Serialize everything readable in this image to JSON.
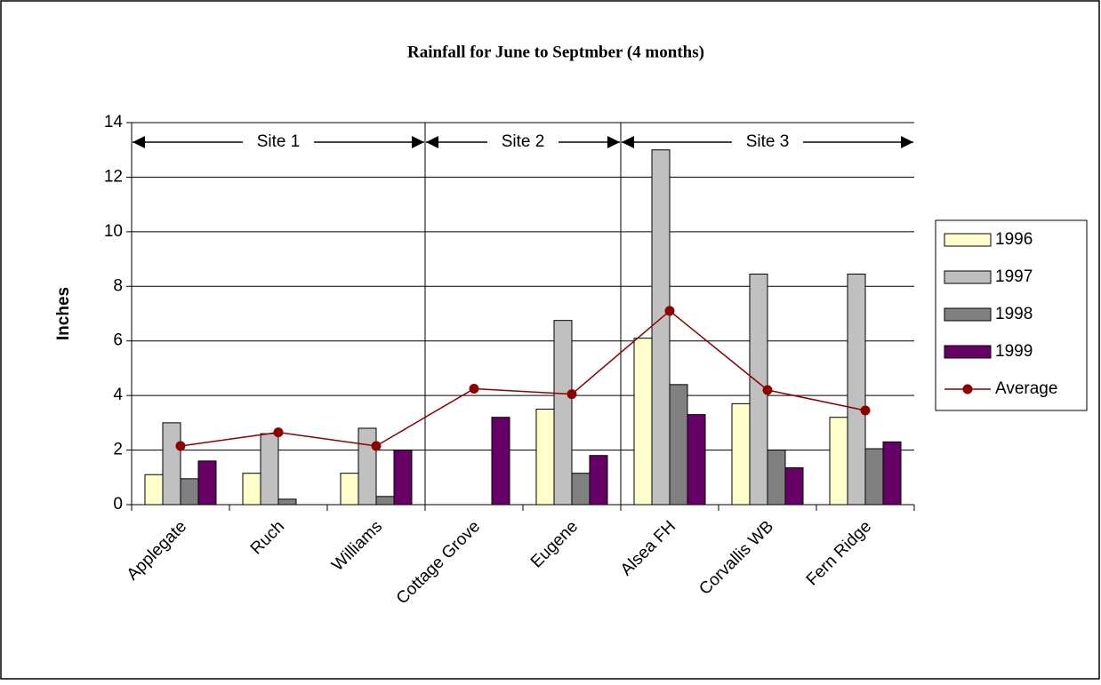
{
  "chart_data": {
    "type": "bar",
    "title": "Rainfall for June to Septmber (4 months)",
    "y_label": "Inches",
    "categories": [
      "Applegate",
      "Ruch",
      "Williams",
      "Cottage Grove",
      "Eugene",
      "Alsea FH",
      "Corvallis WB",
      "Fern Ridge"
    ],
    "series": [
      {
        "name": "1996",
        "color": "#ffffcc",
        "values": [
          1.1,
          1.15,
          1.15,
          null,
          3.5,
          6.1,
          3.7,
          3.2
        ]
      },
      {
        "name": "1997",
        "color": "#c0c0c0",
        "values": [
          3.0,
          2.6,
          2.8,
          null,
          6.75,
          13.0,
          8.45,
          8.45
        ]
      },
      {
        "name": "1998",
        "color": "#808080",
        "values": [
          0.95,
          0.2,
          0.3,
          null,
          1.15,
          4.4,
          2.0,
          2.05
        ]
      },
      {
        "name": "1999",
        "color": "#660066",
        "values": [
          1.6,
          null,
          2.0,
          3.2,
          1.8,
          3.3,
          1.35,
          2.3
        ]
      },
      {
        "name": "Average",
        "type": "line",
        "color": "#8b0000",
        "values": [
          2.15,
          2.65,
          2.15,
          4.25,
          4.05,
          7.1,
          4.2,
          3.45
        ]
      }
    ],
    "annotations": [
      "Site 1",
      "Site 2",
      "Site 3"
    ],
    "ylim": [
      0,
      14
    ],
    "yticks": [
      0,
      2,
      4,
      6,
      8,
      10,
      12,
      14
    ],
    "grid": true,
    "legend": "right"
  }
}
